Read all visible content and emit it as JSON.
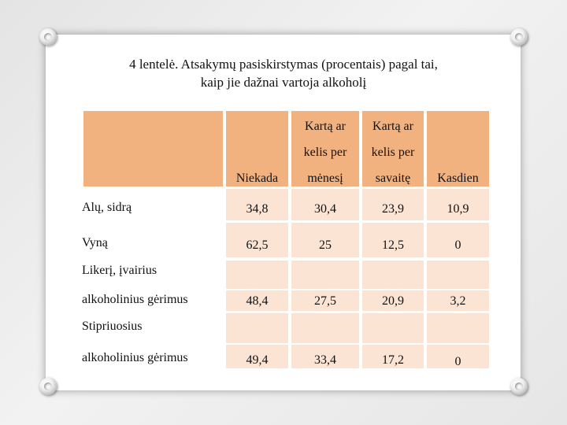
{
  "title": {
    "line1": "4 lentelė. Atsakymų pasiskirstymas (procentais) pagal tai,",
    "line2": "kaip jie dažnai vartoja alkoholį"
  },
  "table": {
    "headers": {
      "niekada": "Niekada",
      "menesi_line1": "Kartą ar",
      "menesi_line2": "kelis per",
      "menesi_line3": "mėnesį",
      "savaite_line1": "Kartą ar",
      "savaite_line2": "kelis per",
      "savaite_line3": "savaitę",
      "kasdien": "Kasdien"
    },
    "rows": [
      {
        "label": "Alų, sidrą",
        "values": [
          "34,8",
          "30,4",
          "23,9",
          "10,9"
        ]
      },
      {
        "label": "Vyną",
        "values": [
          "62,5",
          "25",
          "12,5",
          "0"
        ]
      },
      {
        "label_line1": "Likerį, įvairius",
        "label_line2": "alkoholinius gėrimus",
        "values": [
          "48,4",
          "27,5",
          "20,9",
          "3,2"
        ]
      },
      {
        "label_line1": "Stipriuosius",
        "label_line2": "alkoholinius gėrimus",
        "values": [
          "49,4",
          "33,4",
          "17,2",
          "0"
        ]
      }
    ]
  },
  "colors": {
    "header_fill": "#f2b280",
    "row_fill": "#fbe4d4",
    "background": "#ffffff"
  }
}
